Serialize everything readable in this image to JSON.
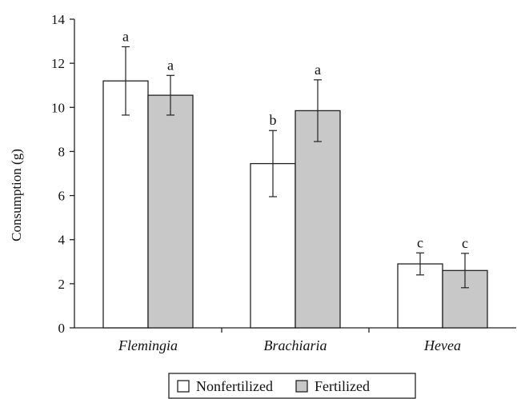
{
  "chart_data": {
    "type": "bar",
    "ylabel": "Consumption (g)",
    "ylim": [
      0,
      14
    ],
    "yticks": [
      0,
      2,
      4,
      6,
      8,
      10,
      12,
      14
    ],
    "categories": [
      "Flemingia",
      "Brachiaria",
      "Hevea"
    ],
    "series": [
      {
        "name": "Nonfertilized",
        "color": "#ffffff",
        "values": [
          11.2,
          7.45,
          2.9
        ],
        "errors": [
          1.55,
          1.5,
          0.5
        ],
        "significance": [
          "a",
          "b",
          "c"
        ]
      },
      {
        "name": "Fertilized",
        "color": "#c8c8c8",
        "values": [
          10.55,
          9.85,
          2.6
        ],
        "errors": [
          0.9,
          1.4,
          0.78
        ],
        "significance": [
          "a",
          "a",
          "c"
        ]
      }
    ],
    "legend_position": "bottom",
    "grid": false
  }
}
